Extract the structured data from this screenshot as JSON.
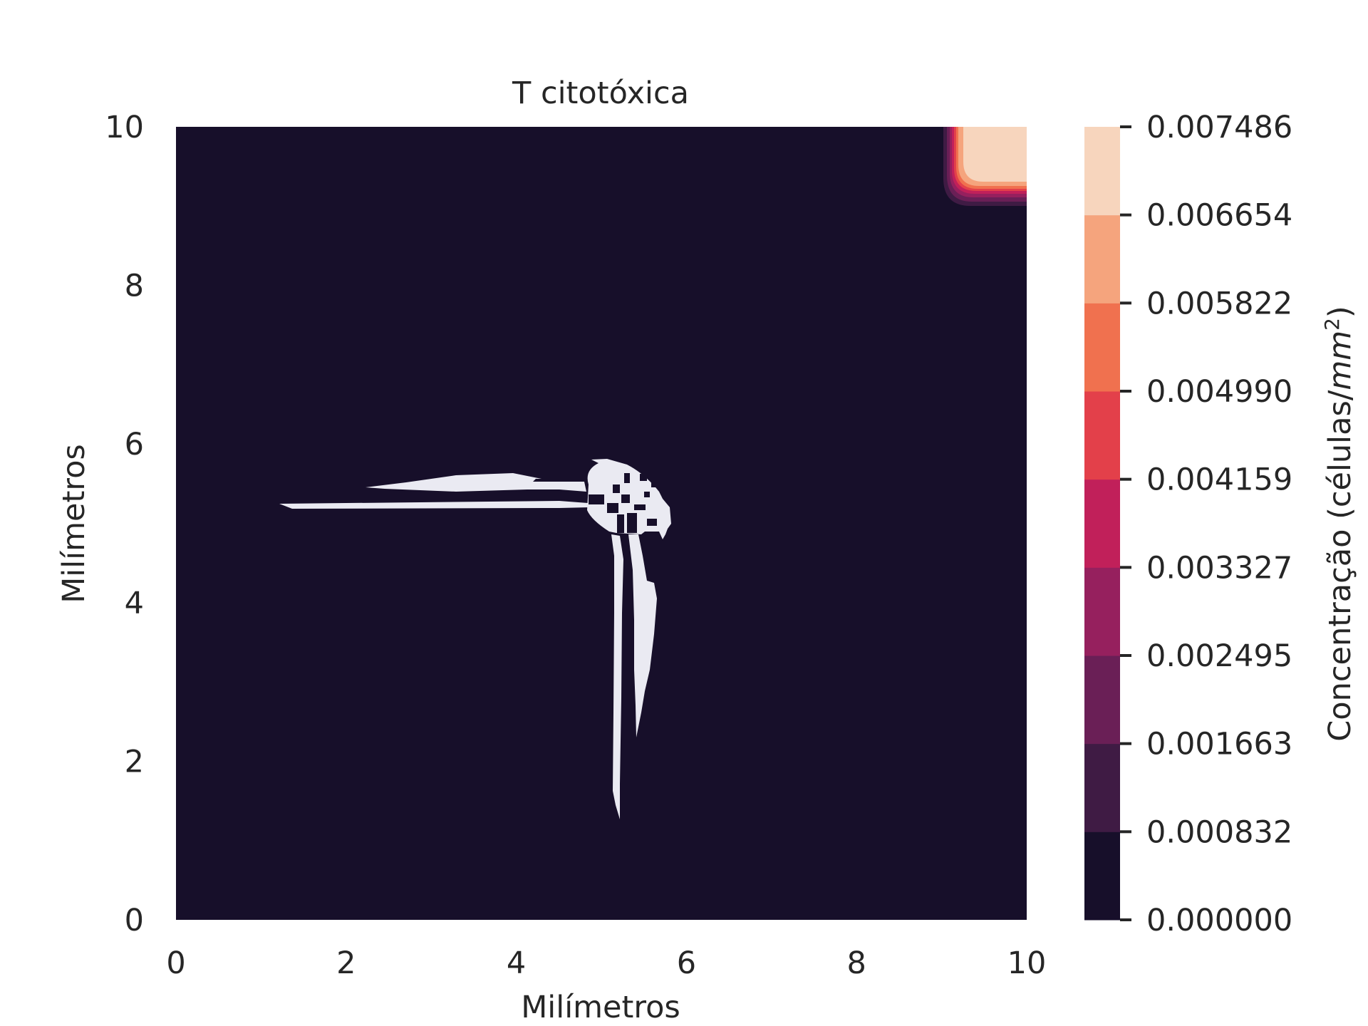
{
  "chart_data": {
    "type": "contour",
    "title": "T citotóxica",
    "xlabel": "Milímetros",
    "ylabel": "Milímetros",
    "xlim": [
      0,
      10
    ],
    "ylim": [
      0,
      10
    ],
    "x_ticks": [
      "0",
      "2",
      "4",
      "6",
      "8",
      "10"
    ],
    "y_ticks": [
      "0",
      "2",
      "4",
      "6",
      "8",
      "10"
    ],
    "grid": false,
    "colorbar": {
      "label_main": "Concentração (células/",
      "label_unit": "mm",
      "label_exp": "2",
      "label_close": ")",
      "levels": [
        "0.000000",
        "0.000832",
        "0.001663",
        "0.002495",
        "0.003327",
        "0.004159",
        "0.004990",
        "0.005822",
        "0.006654",
        "0.007486"
      ],
      "colors": [
        "#170f2a",
        "#3f1b44",
        "#6a1f56",
        "#96205e",
        "#c1205a",
        "#e3404a",
        "#f0714f",
        "#f5a47d",
        "#f7d5bd"
      ]
    },
    "regions": [
      {
        "description": "high concentration corner",
        "x_range": [
          9.0,
          10.0
        ],
        "y_range": [
          9.0,
          10.0
        ],
        "max_value": 0.007486
      },
      {
        "description": "empty (no data) vessel-like structure",
        "horizontal_branch_x": [
          1.2,
          5.8
        ],
        "horizontal_branch_y": [
          5.2,
          5.6
        ],
        "vertical_branch_x": [
          5.0,
          5.8
        ],
        "vertical_branch_y": [
          1.2,
          5.9
        ]
      }
    ],
    "background_value": 0.0
  },
  "colors": {
    "background_level": "#170f2a",
    "empty_region": "#eaeaf2"
  }
}
